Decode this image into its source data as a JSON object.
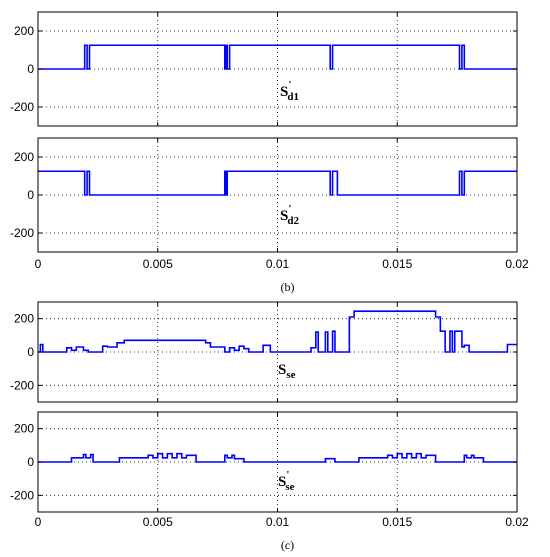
{
  "chart_data": [
    {
      "type": "line",
      "caption": "(b)",
      "xlim": [
        0,
        0.02
      ],
      "x_ticks": [
        "0",
        "0.005",
        "0.01",
        "0.015",
        "0.02"
      ],
      "grid": true,
      "line_color": "#0000ff",
      "panels": [
        {
          "label": {
            "main": "S",
            "sub": "d1",
            "sup": "'"
          },
          "ylim": [
            -300,
            300
          ],
          "y_ticks": [
            "200",
            "0",
            "-200"
          ],
          "y_tick_values": [
            200,
            0,
            -200
          ],
          "series": [
            {
              "x": [
                0,
                0.00195,
                0.00195,
                0.00205,
                0.00205,
                0.00215,
                0.00215,
                0.00225,
                0.00225,
                0.0078,
                0.0078,
                0.00785,
                0.00785,
                0.0079,
                0.0079,
                0.008,
                0.008,
                0.0122,
                0.0122,
                0.0123,
                0.0123,
                0.0125,
                0.0125,
                0.0176,
                0.0176,
                0.0177,
                0.0177,
                0.0178,
                0.0178,
                0.0179,
                0.0179,
                0.02
              ],
              "y": [
                0,
                0,
                125,
                125,
                0,
                0,
                125,
                125,
                125,
                125,
                0,
                0,
                125,
                125,
                0,
                0,
                125,
                125,
                0,
                0,
                125,
                125,
                125,
                125,
                0,
                0,
                125,
                125,
                0,
                0,
                0,
                0
              ]
            }
          ]
        },
        {
          "label": {
            "main": "S",
            "sub": "d2",
            "sup": "'"
          },
          "ylim": [
            -300,
            300
          ],
          "y_ticks": [
            "200",
            "0",
            "-200"
          ],
          "y_tick_values": [
            200,
            0,
            -200
          ],
          "series": [
            {
              "x": [
                0,
                0.00195,
                0.00195,
                0.00205,
                0.00205,
                0.00215,
                0.00215,
                0.00225,
                0.00225,
                0.0078,
                0.0078,
                0.00785,
                0.00785,
                0.0079,
                0.0079,
                0.008,
                0.008,
                0.0122,
                0.0122,
                0.0123,
                0.0123,
                0.0125,
                0.0125,
                0.0176,
                0.0176,
                0.0177,
                0.0177,
                0.0178,
                0.0178,
                0.0179,
                0.0179,
                0.02
              ],
              "y": [
                125,
                125,
                0,
                0,
                125,
                125,
                0,
                0,
                0,
                0,
                125,
                125,
                0,
                0,
                125,
                125,
                125,
                125,
                0,
                0,
                125,
                125,
                0,
                0,
                125,
                125,
                0,
                0,
                125,
                125,
                125,
                125
              ]
            }
          ]
        }
      ]
    },
    {
      "type": "line",
      "caption": "(c)",
      "xlim": [
        0,
        0.02
      ],
      "x_ticks": [
        "0",
        "0.005",
        "0.01",
        "0.015",
        "0.02"
      ],
      "grid": true,
      "line_color": "#0000ff",
      "panels": [
        {
          "label": {
            "main": "S",
            "sub": "se",
            "sup": ""
          },
          "ylim": [
            -300,
            300
          ],
          "y_ticks": [
            "200",
            "0",
            "-200"
          ],
          "y_tick_values": [
            200,
            0,
            -200
          ],
          "series": [
            {
              "x": [
                0,
                0.0001,
                0.0001,
                0.0002,
                0.0002,
                0.0003,
                0.0003,
                0.0012,
                0.0012,
                0.0014,
                0.0014,
                0.0016,
                0.0016,
                0.0019,
                0.0019,
                0.0021,
                0.0021,
                0.0023,
                0.0023,
                0.0027,
                0.0027,
                0.0029,
                0.0029,
                0.0033,
                0.0033,
                0.0036,
                0.0036,
                0.0046,
                0.0046,
                0.007,
                0.007,
                0.0072,
                0.0072,
                0.0078,
                0.0078,
                0.008,
                0.008,
                0.0082,
                0.0082,
                0.0084,
                0.0084,
                0.0086,
                0.0086,
                0.0088,
                0.0088,
                0.0094,
                0.0094,
                0.0097,
                0.0097,
                0.01,
                0.01,
                0.0114,
                0.0114,
                0.0116,
                0.0116,
                0.0117,
                0.0117,
                0.012,
                0.012,
                0.0121,
                0.0121,
                0.0123,
                0.0123,
                0.0124,
                0.0124,
                0.013,
                0.013,
                0.0132,
                0.0132,
                0.0166,
                0.0166,
                0.0168,
                0.0168,
                0.017,
                0.017,
                0.0172,
                0.0172,
                0.0173,
                0.0173,
                0.0174,
                0.0174,
                0.0177,
                0.0177,
                0.0178,
                0.0178,
                0.018,
                0.018,
                0.0196,
                0.0196,
                0.02
              ],
              "y": [
                0,
                0,
                45,
                45,
                0,
                0,
                0,
                0,
                25,
                25,
                10,
                10,
                30,
                30,
                10,
                10,
                0,
                0,
                0,
                0,
                35,
                35,
                30,
                30,
                55,
                55,
                70,
                70,
                70,
                70,
                55,
                55,
                30,
                30,
                0,
                0,
                25,
                25,
                10,
                10,
                35,
                35,
                20,
                20,
                0,
                0,
                40,
                40,
                0,
                0,
                0,
                0,
                25,
                25,
                120,
                120,
                0,
                0,
                120,
                120,
                0,
                0,
                125,
                125,
                0,
                0,
                210,
                210,
                245,
                245,
                210,
                210,
                125,
                125,
                0,
                0,
                125,
                125,
                0,
                0,
                125,
                125,
                30,
                30,
                40,
                40,
                0,
                0,
                45,
                45
              ]
            }
          ]
        },
        {
          "label": {
            "main": "S",
            "sub": "se",
            "sup": "'"
          },
          "ylim": [
            -300,
            300
          ],
          "y_ticks": [
            "200",
            "0",
            "-200"
          ],
          "y_tick_values": [
            200,
            0,
            -200
          ],
          "series": [
            {
              "x": [
                0,
                0.0014,
                0.0014,
                0.0019,
                0.0019,
                0.002,
                0.002,
                0.0022,
                0.0022,
                0.0023,
                0.0023,
                0.0034,
                0.0034,
                0.0046,
                0.0046,
                0.0048,
                0.0048,
                0.005,
                0.005,
                0.0052,
                0.0052,
                0.0054,
                0.0054,
                0.0056,
                0.0056,
                0.0058,
                0.0058,
                0.006,
                0.006,
                0.0062,
                0.0062,
                0.0066,
                0.0066,
                0.0078,
                0.0078,
                0.0079,
                0.0079,
                0.0081,
                0.0081,
                0.0082,
                0.0082,
                0.0086,
                0.0086,
                0.012,
                0.012,
                0.0124,
                0.0124,
                0.0134,
                0.0134,
                0.0146,
                0.0146,
                0.0148,
                0.0148,
                0.015,
                0.015,
                0.0152,
                0.0152,
                0.0154,
                0.0154,
                0.0156,
                0.0156,
                0.0158,
                0.0158,
                0.016,
                0.016,
                0.0162,
                0.0162,
                0.0166,
                0.0166,
                0.0178,
                0.0178,
                0.0179,
                0.0179,
                0.0181,
                0.0181,
                0.0182,
                0.0182,
                0.0186,
                0.0186,
                0.02
              ],
              "y": [
                0,
                0,
                25,
                25,
                45,
                45,
                25,
                25,
                45,
                45,
                0,
                0,
                25,
                25,
                40,
                40,
                25,
                25,
                50,
                50,
                25,
                25,
                50,
                50,
                25,
                25,
                50,
                50,
                25,
                25,
                40,
                40,
                0,
                0,
                40,
                40,
                25,
                25,
                40,
                40,
                20,
                20,
                0,
                0,
                20,
                20,
                0,
                0,
                25,
                25,
                40,
                40,
                25,
                25,
                50,
                50,
                25,
                25,
                50,
                50,
                25,
                25,
                50,
                50,
                25,
                25,
                40,
                40,
                0,
                0,
                40,
                40,
                25,
                25,
                40,
                40,
                25,
                25,
                0,
                0
              ]
            }
          ]
        }
      ]
    }
  ]
}
